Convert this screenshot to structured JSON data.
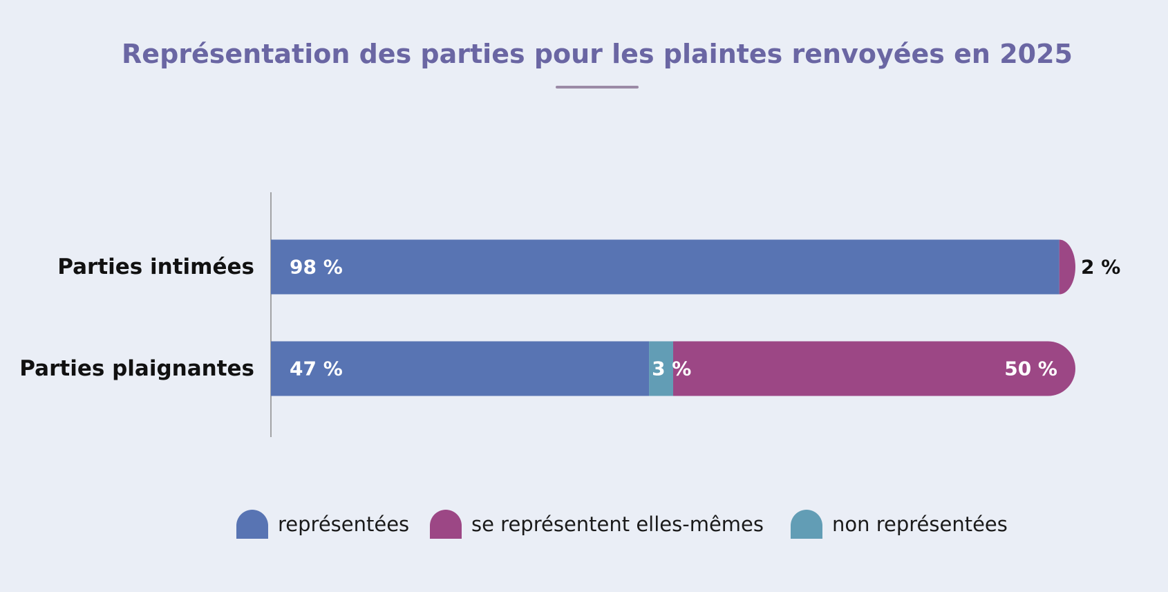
{
  "title": "Représentation des parties pour les plaintes renvoyées en 2025",
  "colors": {
    "background": "#eaeef6",
    "title": "#6a66a3",
    "representees": "#5874b3",
    "se_representent": "#9c4785",
    "non_representees": "#629db5",
    "axis": "#8a8a8a"
  },
  "chart_data": {
    "type": "bar",
    "orientation": "horizontal",
    "stacked": true,
    "title": "Représentation des parties pour les plaintes renvoyées en 2025",
    "xlabel": "",
    "ylabel": "",
    "xlim": [
      0,
      100
    ],
    "grid": false,
    "legend_position": "bottom",
    "categories": [
      "Parties intimées",
      "Parties plaignantes"
    ],
    "series": [
      {
        "name": "représentées",
        "color": "#5874b3",
        "values": [
          98,
          47
        ],
        "labels": [
          "98 %",
          "47 %"
        ]
      },
      {
        "name": "non représentées",
        "color": "#629db5",
        "values": [
          0,
          3
        ],
        "labels": [
          "",
          "3 %"
        ]
      },
      {
        "name": "se représentent elles-mêmes",
        "color": "#9c4785",
        "values": [
          2,
          50
        ],
        "labels": [
          "2 %",
          "50 %"
        ]
      }
    ]
  },
  "legend": {
    "items": [
      {
        "label": "représentées",
        "color": "#5874b3"
      },
      {
        "label": "se représentent elles-mêmes",
        "color": "#9c4785"
      },
      {
        "label": "non représentées",
        "color": "#629db5"
      }
    ]
  }
}
